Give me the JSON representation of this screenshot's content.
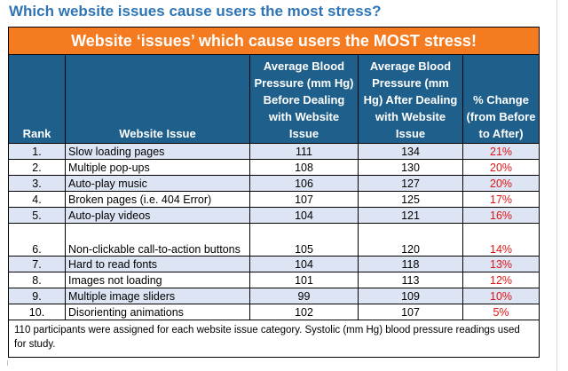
{
  "heading": "Which website issues cause users the most stress?",
  "table": {
    "title": "Website ‘issues’ which cause users the MOST stress!",
    "columns": {
      "rank": "Rank",
      "issue": "Website Issue",
      "before": "Average Blood Pressure (mm Hg) Before Dealing with Website Issue",
      "after": "Average Blood Pressure (mm Hg) After Dealing with Website Issue",
      "change": "% Change (from Before to After)"
    },
    "rows": [
      {
        "rank": "1.",
        "issue": "Slow loading pages",
        "before": "111",
        "after": "134",
        "change": "21%"
      },
      {
        "rank": "2.",
        "issue": "Multiple pop-ups",
        "before": "108",
        "after": "130",
        "change": "20%"
      },
      {
        "rank": "3.",
        "issue": "Auto-play music",
        "before": "106",
        "after": "127",
        "change": "20%"
      },
      {
        "rank": "4.",
        "issue": "Broken pages (i.e. 404 Error)",
        "before": "107",
        "after": "125",
        "change": "17%"
      },
      {
        "rank": "5.",
        "issue": "Auto-play videos",
        "before": "104",
        "after": "121",
        "change": "16%"
      },
      {
        "rank": "6.",
        "issue": "Non-clickable call-to-action buttons",
        "before": "105",
        "after": "120",
        "change": "14%"
      },
      {
        "rank": "7.",
        "issue": "Hard to read fonts",
        "before": "104",
        "after": "118",
        "change": "13%"
      },
      {
        "rank": "8.",
        "issue": "Images not loading",
        "before": "101",
        "after": "113",
        "change": "12%"
      },
      {
        "rank": "9.",
        "issue": "Multiple image sliders",
        "before": "99",
        "after": "109",
        "change": "10%"
      },
      {
        "rank": "10.",
        "issue": "Disorienting animations",
        "before": "102",
        "after": "107",
        "change": "5%"
      }
    ],
    "footnote": "110 participants were assigned for each website issue category. Systolic (mm Hg) blood pressure readings used for study."
  },
  "colors": {
    "heading": "#2f75b5",
    "title_bar": "#f47b20",
    "header_bar": "#1f5f8b",
    "row_shade": "#dde4f3",
    "percent_text": "#e01414"
  }
}
